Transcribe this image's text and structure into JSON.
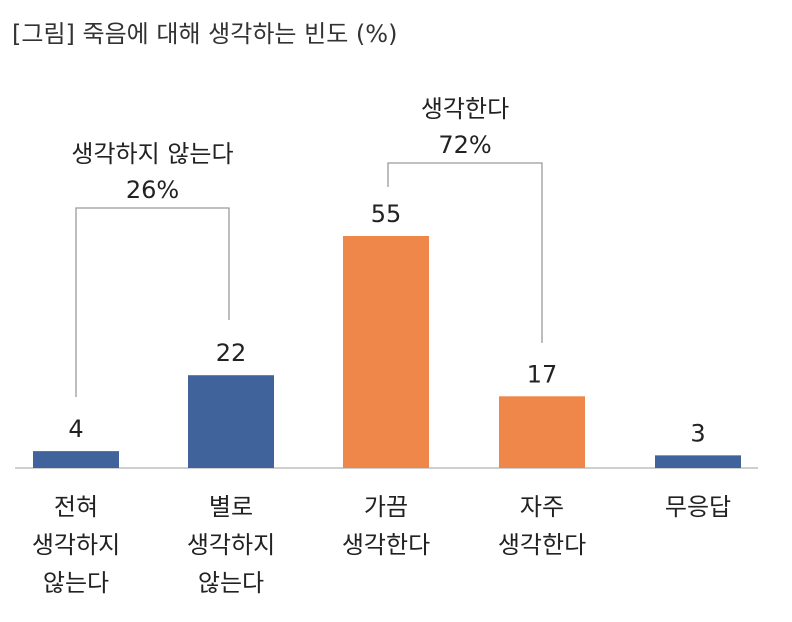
{
  "title": "[그림] 죽음에 대해 생각하는 빈도 (%)",
  "chart_data": {
    "type": "bar",
    "categories": [
      [
        "전혀",
        "생각하지",
        "않는다"
      ],
      [
        "별로",
        "생각하지",
        "않는다"
      ],
      [
        "가끔",
        "생각한다"
      ],
      [
        "자주",
        "생각한다"
      ],
      [
        "무응답"
      ]
    ],
    "values": [
      4,
      22,
      55,
      17,
      3
    ],
    "value_labels": [
      "4",
      "22",
      "55",
      "17",
      "3"
    ],
    "bar_colors": [
      "#41639c",
      "#41639c",
      "#f0874a",
      "#f0874a",
      "#41639c"
    ],
    "ylim": [
      0,
      55
    ],
    "brackets": [
      {
        "from": 0,
        "to": 1,
        "label_line1": "생각하지 않는다",
        "label_line2": "26%"
      },
      {
        "from": 2,
        "to": 3,
        "label_line1": "생각한다",
        "label_line2": "72%"
      }
    ]
  }
}
